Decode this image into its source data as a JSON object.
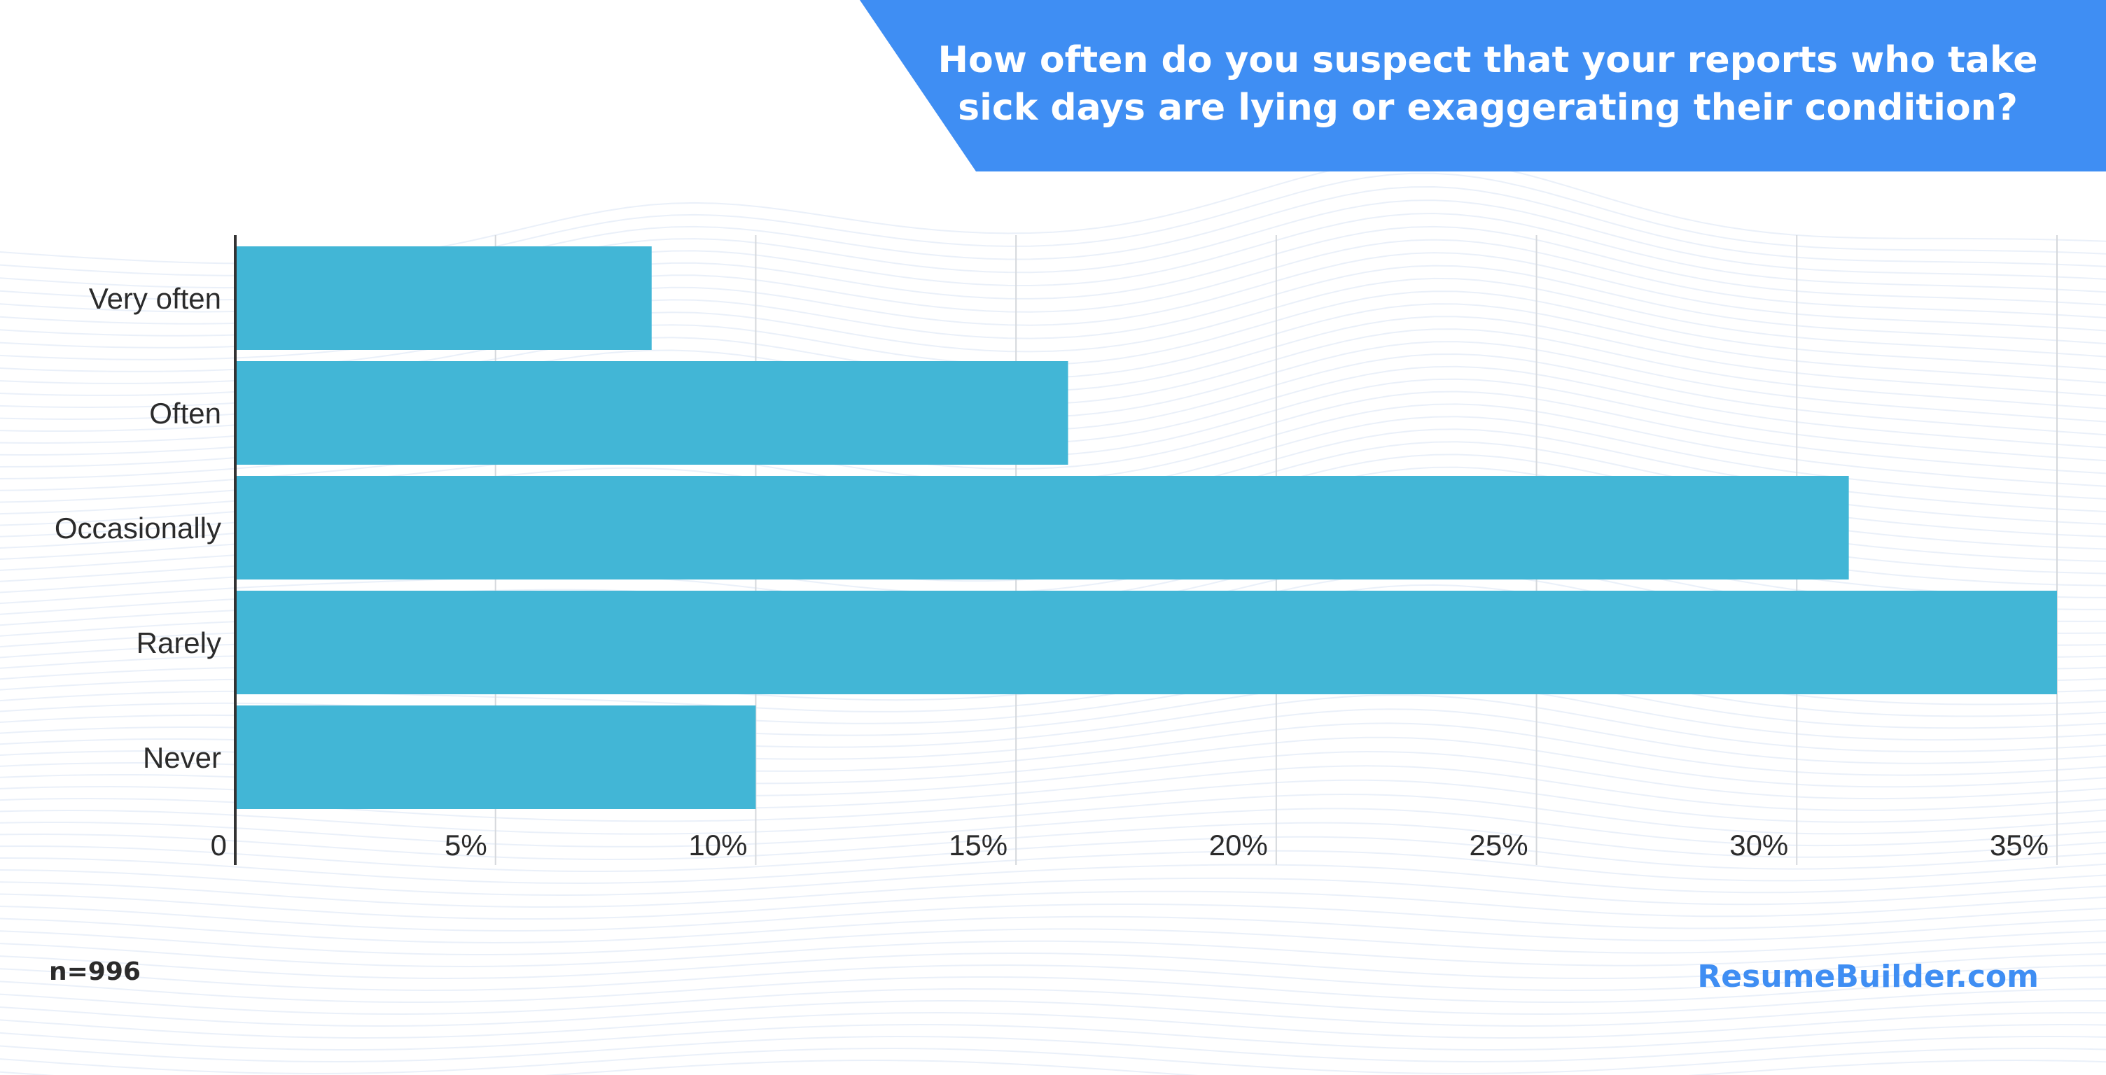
{
  "chart_data": {
    "type": "bar",
    "orientation": "horizontal",
    "title": "How often do you suspect that your reports who take sick days are lying or exaggerating their condition?",
    "categories": [
      "Very often",
      "Often",
      "Occasionally",
      "Rarely",
      "Never"
    ],
    "values": [
      8,
      16,
      31,
      35,
      10
    ],
    "unit": "%",
    "xlim": [
      0,
      35
    ],
    "ticks": [
      0,
      5,
      10,
      15,
      20,
      25,
      30,
      35
    ],
    "tick_labels": [
      "0",
      "5%",
      "10%",
      "15%",
      "20%",
      "25%",
      "30%",
      "35%"
    ],
    "grid": true,
    "legend": "none"
  },
  "colors": {
    "bar": "#42b6d6",
    "banner": "#3f8ef3",
    "gridline": "#d5d8dc",
    "axis": "#333333",
    "brand": "#3f8ef3",
    "wave": "#e3ebf7"
  },
  "footer": {
    "sample_size": "n=996",
    "brand": "ResumeBuilder.com"
  }
}
